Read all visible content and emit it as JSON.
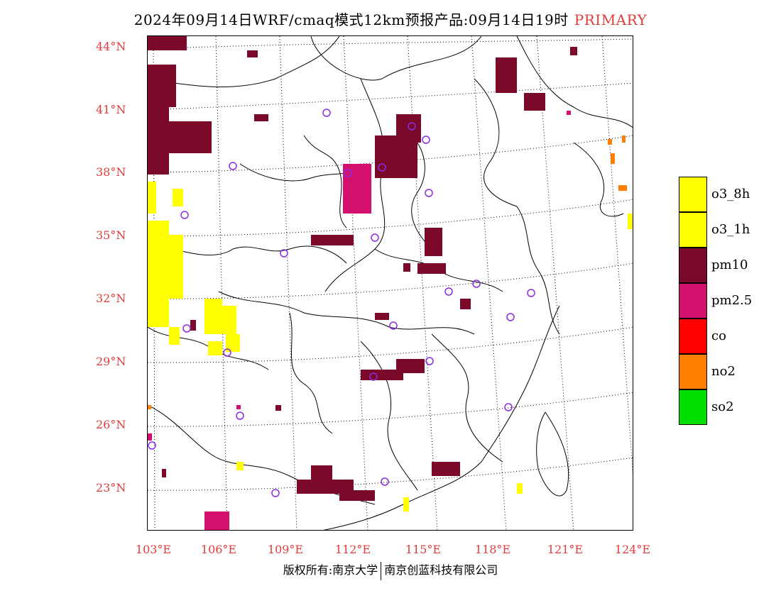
{
  "title": {
    "text": "2024年09月14日WRF/cmaq模式12km预报产品:09月14日19时",
    "tag": "PRIMARY",
    "tag_color": "#e03c3c"
  },
  "map": {
    "lat_labels": [
      "44°N",
      "41°N",
      "38°N",
      "35°N",
      "32°N",
      "29°N",
      "26°N",
      "23°N"
    ],
    "lon_labels": [
      "103°E",
      "106°E",
      "109°E",
      "112°E",
      "115°E",
      "118°E",
      "121°E",
      "124°E"
    ],
    "label_color": "#e03c3c"
  },
  "legend": {
    "items": [
      {
        "label": "o3_8h",
        "color": "#ffff00"
      },
      {
        "label": "o3_1h",
        "color": "#ffff00"
      },
      {
        "label": "pm10",
        "color": "#7b0a2a"
      },
      {
        "label": "pm2.5",
        "color": "#d4106f"
      },
      {
        "label": "co",
        "color": "#ff0000"
      },
      {
        "label": "no2",
        "color": "#ff8000"
      },
      {
        "label": "so2",
        "color": "#00e000"
      }
    ]
  },
  "footer": {
    "left": "版权所有:南京大学",
    "right": "南京创蓝科技有限公司"
  }
}
